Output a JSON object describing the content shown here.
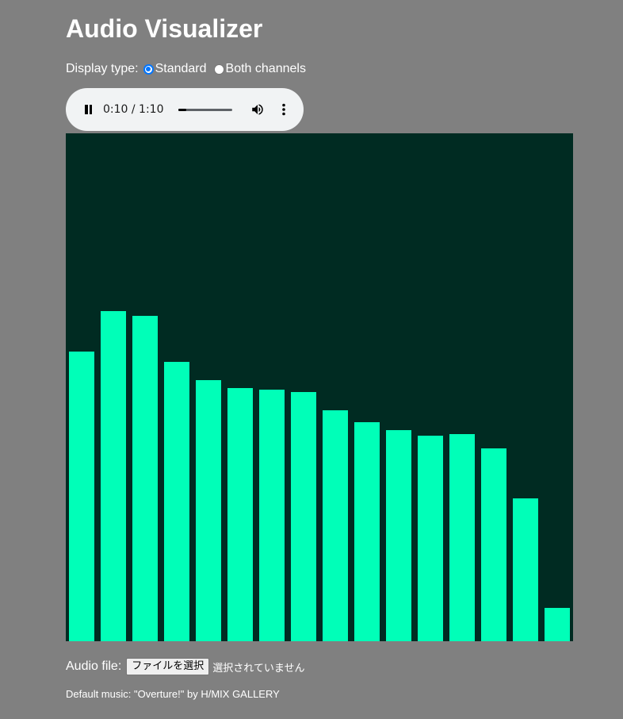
{
  "page": {
    "title": "Audio Visualizer",
    "background_color": "#808080"
  },
  "display_type": {
    "label": "Display type:",
    "options": [
      {
        "label": "Standard",
        "selected": true
      },
      {
        "label": "Both channels",
        "selected": false
      }
    ]
  },
  "player": {
    "state": "playing",
    "time_display": "0:10 / 1:10",
    "progress_fraction": 0.143,
    "icons": {
      "play_pause": "pause-icon",
      "volume": "volume-icon",
      "menu": "more-vert-icon"
    }
  },
  "visualizer": {
    "background_color": "#002b22",
    "bar_color": "#00ffb8",
    "bar_levels": [
      0.57,
      0.65,
      0.64,
      0.55,
      0.514,
      0.498,
      0.495,
      0.491,
      0.455,
      0.432,
      0.416,
      0.405,
      0.408,
      0.38,
      0.282,
      0.066
    ]
  },
  "audio_file": {
    "label": "Audio file:",
    "button_label": "ファイルを選択",
    "status": "選択されていません"
  },
  "credit": "Default music: \"Overture!\" by H/MIX GALLERY"
}
